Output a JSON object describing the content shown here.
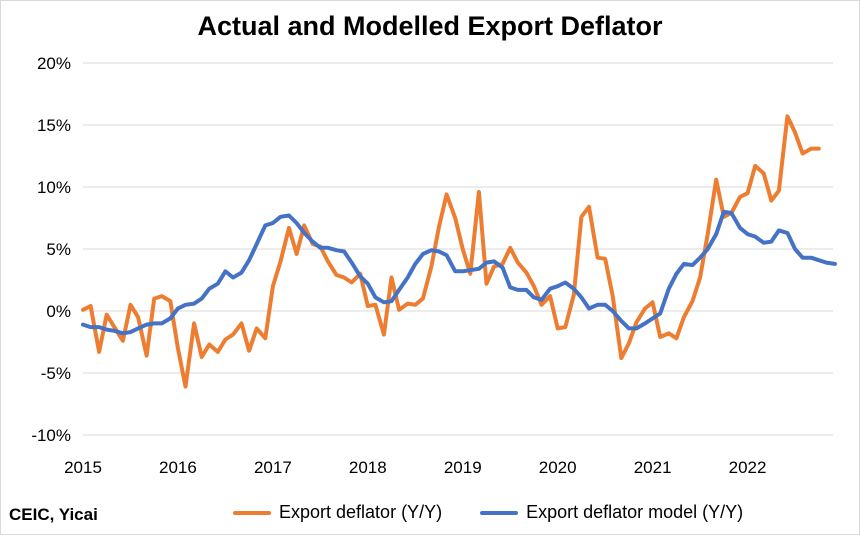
{
  "source_note": "CEIC, Yicai",
  "colors": {
    "orange": "#ED7D31",
    "blue": "#4472C4",
    "axis": "#d9d9d9"
  },
  "chart_data": {
    "type": "line",
    "title": "Actual and Modelled Export Deflator",
    "xlabel": "",
    "ylabel": "",
    "ylim": [
      -10,
      20
    ],
    "xlim": [
      2015,
      2022.9
    ],
    "y_ticks": [
      -10,
      -5,
      0,
      5,
      10,
      15,
      20
    ],
    "y_tick_labels": [
      "-10%",
      "-5%",
      "0%",
      "5%",
      "10%",
      "15%",
      "20%"
    ],
    "x_ticks": [
      2015,
      2016,
      2017,
      2018,
      2019,
      2020,
      2021,
      2022
    ],
    "x_tick_labels": [
      "2015",
      "2016",
      "2017",
      "2018",
      "2019",
      "2020",
      "2021",
      "2022"
    ],
    "grid": true,
    "legend": "bottom",
    "series": [
      {
        "name": "Export deflator (Y/Y)",
        "color": "#ED7D31",
        "x": [
          2015.0,
          2015.08,
          2015.17,
          2015.25,
          2015.33,
          2015.42,
          2015.5,
          2015.58,
          2015.67,
          2015.75,
          2015.83,
          2015.92,
          2016.0,
          2016.08,
          2016.17,
          2016.25,
          2016.33,
          2016.42,
          2016.5,
          2016.58,
          2016.67,
          2016.75,
          2016.83,
          2016.92,
          2017.0,
          2017.08,
          2017.17,
          2017.25,
          2017.33,
          2017.42,
          2017.5,
          2017.58,
          2017.67,
          2017.75,
          2017.83,
          2017.92,
          2018.0,
          2018.08,
          2018.17,
          2018.25,
          2018.33,
          2018.42,
          2018.5,
          2018.58,
          2018.67,
          2018.75,
          2018.83,
          2018.92,
          2019.0,
          2019.08,
          2019.17,
          2019.25,
          2019.33,
          2019.42,
          2019.5,
          2019.58,
          2019.67,
          2019.75,
          2019.83,
          2019.92,
          2020.0,
          2020.08,
          2020.17,
          2020.25,
          2020.33,
          2020.42,
          2020.5,
          2020.58,
          2020.67,
          2020.75,
          2020.83,
          2020.92,
          2021.0,
          2021.08,
          2021.17,
          2021.25,
          2021.33,
          2021.42,
          2021.5,
          2021.58,
          2021.67,
          2021.75,
          2021.83,
          2021.92,
          2022.0,
          2022.08,
          2022.17,
          2022.25,
          2022.33,
          2022.42,
          2022.5,
          2022.58,
          2022.67,
          2022.75
        ],
        "values": [
          0.1,
          0.4,
          -3.3,
          -0.3,
          -1.3,
          -2.4,
          0.5,
          -0.5,
          -3.6,
          1.0,
          1.2,
          0.8,
          -3.0,
          -6.1,
          -1.0,
          -3.7,
          -2.7,
          -3.3,
          -2.3,
          -1.9,
          -1.0,
          -3.2,
          -1.4,
          -2.2,
          2.0,
          4.0,
          6.7,
          4.6,
          6.9,
          5.4,
          5.2,
          4.0,
          2.9,
          2.7,
          2.3,
          3.0,
          0.4,
          0.5,
          -1.9,
          2.7,
          0.1,
          0.6,
          0.5,
          1.0,
          3.6,
          6.8,
          9.4,
          7.5,
          5.0,
          3.0,
          9.6,
          2.2,
          3.6,
          3.8,
          5.1,
          3.9,
          3.1,
          2.0,
          0.5,
          1.2,
          -1.4,
          -1.3,
          1.3,
          7.6,
          8.4,
          4.3,
          4.2,
          1.2,
          -3.8,
          -2.6,
          -0.9,
          0.2,
          0.7,
          -2.1,
          -1.8,
          -2.2,
          -0.5,
          0.8,
          2.7,
          6.2,
          10.6,
          7.6,
          7.9,
          9.2,
          9.5,
          11.7,
          11.1,
          8.9,
          9.7,
          15.7,
          14.4,
          12.7,
          13.1,
          13.1
        ]
      },
      {
        "name": "Export deflator model (Y/Y)",
        "color": "#4472C4",
        "x": [
          2015.0,
          2015.08,
          2015.17,
          2015.25,
          2015.33,
          2015.42,
          2015.5,
          2015.58,
          2015.67,
          2015.75,
          2015.83,
          2015.92,
          2016.0,
          2016.08,
          2016.17,
          2016.25,
          2016.33,
          2016.42,
          2016.5,
          2016.58,
          2016.67,
          2016.75,
          2016.83,
          2016.92,
          2017.0,
          2017.08,
          2017.17,
          2017.25,
          2017.33,
          2017.42,
          2017.5,
          2017.58,
          2017.67,
          2017.75,
          2017.83,
          2017.92,
          2018.0,
          2018.08,
          2018.17,
          2018.25,
          2018.33,
          2018.42,
          2018.5,
          2018.58,
          2018.67,
          2018.75,
          2018.83,
          2018.92,
          2019.0,
          2019.08,
          2019.17,
          2019.25,
          2019.33,
          2019.42,
          2019.5,
          2019.58,
          2019.67,
          2019.75,
          2019.83,
          2019.92,
          2020.0,
          2020.08,
          2020.17,
          2020.25,
          2020.33,
          2020.42,
          2020.5,
          2020.58,
          2020.67,
          2020.75,
          2020.83,
          2020.92,
          2021.0,
          2021.08,
          2021.17,
          2021.25,
          2021.33,
          2021.42,
          2021.5,
          2021.58,
          2021.67,
          2021.75,
          2021.83,
          2021.92,
          2022.0,
          2022.08,
          2022.17,
          2022.25,
          2022.33,
          2022.42,
          2022.5,
          2022.58,
          2022.67,
          2022.75,
          2022.83,
          2022.92
        ],
        "values": [
          -1.1,
          -1.3,
          -1.3,
          -1.5,
          -1.6,
          -1.8,
          -1.7,
          -1.4,
          -1.1,
          -1.0,
          -1.0,
          -0.6,
          0.2,
          0.5,
          0.6,
          1.0,
          1.8,
          2.2,
          3.2,
          2.7,
          3.1,
          4.1,
          5.4,
          6.9,
          7.1,
          7.6,
          7.7,
          7.1,
          6.3,
          5.6,
          5.1,
          5.1,
          4.9,
          4.8,
          3.9,
          2.8,
          2.2,
          1.1,
          0.7,
          0.8,
          1.7,
          2.7,
          3.8,
          4.6,
          4.9,
          4.8,
          4.5,
          3.2,
          3.2,
          3.3,
          3.4,
          3.9,
          4.0,
          3.5,
          1.9,
          1.7,
          1.7,
          1.1,
          0.9,
          1.8,
          2.0,
          2.3,
          1.8,
          1.1,
          0.2,
          0.5,
          0.5,
          0.0,
          -0.8,
          -1.4,
          -1.4,
          -1.0,
          -0.6,
          -0.2,
          1.8,
          3.0,
          3.8,
          3.7,
          4.3,
          5.0,
          6.2,
          8.0,
          7.9,
          6.7,
          6.2,
          6.0,
          5.5,
          5.6,
          6.5,
          6.3,
          5.0,
          4.3,
          4.3,
          4.1,
          3.9,
          3.8
        ]
      }
    ]
  }
}
